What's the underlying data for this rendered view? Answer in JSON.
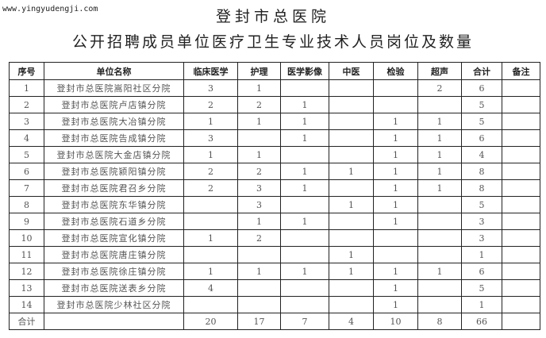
{
  "watermark": "www.yingyudengji.com",
  "title": "登封市总医院",
  "subtitle": "公开招聘成员单位医疗卫生专业技术人员岗位及数量",
  "headers": [
    "序号",
    "单位名称",
    "临床医学",
    "护理",
    "医学影像",
    "中医",
    "检验",
    "超声",
    "合计",
    "备注"
  ],
  "rows": [
    [
      "1",
      "登封市总医院嵩阳社区分院",
      "3",
      "1",
      "",
      "",
      "",
      "2",
      "6",
      ""
    ],
    [
      "2",
      "登封市总医院卢店镇分院",
      "2",
      "2",
      "1",
      "",
      "",
      "",
      "5",
      ""
    ],
    [
      "3",
      "登封市总医院大冶镇分院",
      "1",
      "1",
      "1",
      "",
      "1",
      "1",
      "5",
      ""
    ],
    [
      "4",
      "登封市总医院告成镇分院",
      "3",
      "",
      "1",
      "",
      "1",
      "1",
      "6",
      ""
    ],
    [
      "5",
      "登封市总医院大金店镇分院",
      "1",
      "1",
      "",
      "",
      "1",
      "1",
      "4",
      ""
    ],
    [
      "6",
      "登封市总医院颍阳镇分院",
      "2",
      "2",
      "1",
      "1",
      "1",
      "1",
      "8",
      ""
    ],
    [
      "7",
      "登封市总医院君召乡分院",
      "2",
      "3",
      "1",
      "",
      "1",
      "1",
      "8",
      ""
    ],
    [
      "8",
      "登封市总医院东华镇分院",
      "",
      "3",
      "",
      "1",
      "1",
      "",
      "5",
      ""
    ],
    [
      "9",
      "登封市总医院石道乡分院",
      "",
      "1",
      "1",
      "",
      "1",
      "",
      "3",
      ""
    ],
    [
      "10",
      "登封市总医院宣化镇分院",
      "1",
      "2",
      "",
      "",
      "",
      "",
      "3",
      ""
    ],
    [
      "11",
      "登封市总医院唐庄镇分院",
      "",
      "",
      "",
      "1",
      "",
      "",
      "1",
      ""
    ],
    [
      "12",
      "登封市总医院徐庄镇分院",
      "1",
      "1",
      "1",
      "1",
      "1",
      "1",
      "6",
      ""
    ],
    [
      "13",
      "登封市总医院送表乡分院",
      "4",
      "",
      "",
      "",
      "1",
      "",
      "5",
      ""
    ],
    [
      "14",
      "登封市总医院少林社区分院",
      "",
      "",
      "",
      "",
      "1",
      "",
      "1",
      ""
    ],
    [
      "合计",
      "",
      "20",
      "17",
      "7",
      "4",
      "10",
      "8",
      "66",
      ""
    ]
  ]
}
